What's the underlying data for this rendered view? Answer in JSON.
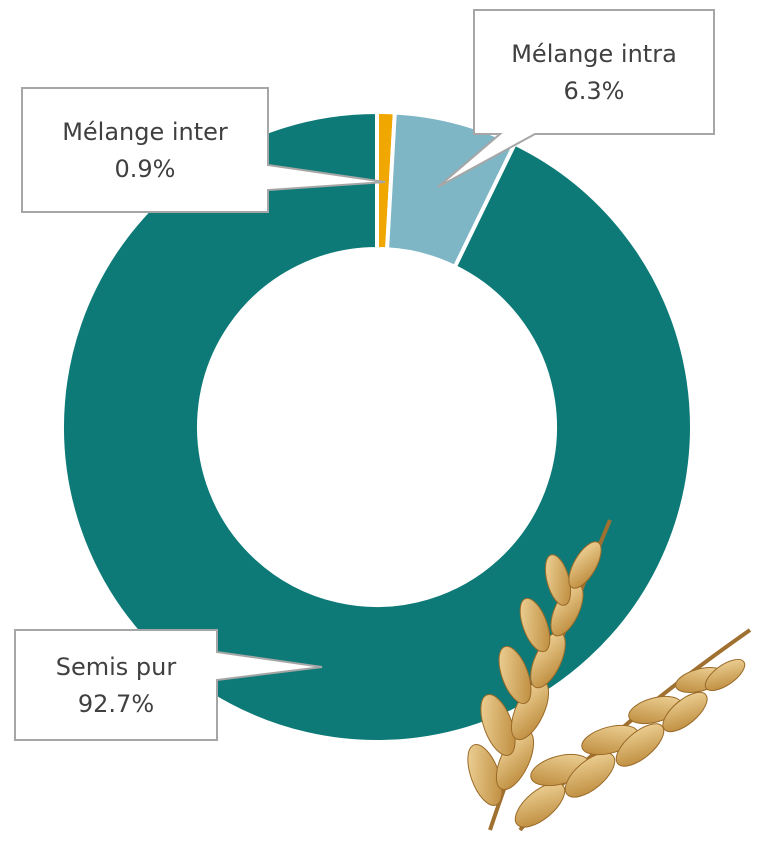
{
  "chart_data": {
    "type": "donut",
    "categories": [
      "Mélange inter",
      "Mélange intra",
      "Semis pur"
    ],
    "values": [
      0.9,
      6.3,
      92.7
    ],
    "value_labels": [
      "0.9%",
      "6.3%",
      "92.7%"
    ],
    "colors": [
      "#f0a800",
      "#7fb6c6",
      "#0e7a77"
    ]
  }
}
